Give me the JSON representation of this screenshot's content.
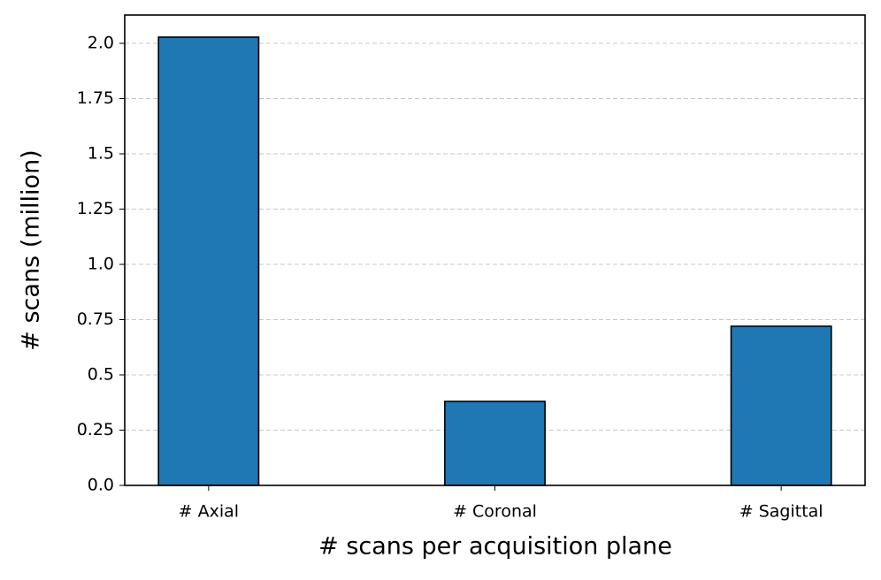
{
  "chart_data": {
    "type": "bar",
    "xlabel": "# scans per acquisition plane",
    "ylabel": "# scans (million)",
    "categories": [
      "# Axial",
      "# Coronal",
      "# Sagittal"
    ],
    "values": [
      2.028,
      0.38,
      0.72
    ],
    "color": "#1f77b4",
    "ylim": [
      0,
      2.128
    ],
    "yticks": [
      {
        "value": 0,
        "label": "0.0"
      },
      0.25,
      0.5,
      0.75,
      {
        "value": 1,
        "label": "1.0"
      },
      1.25,
      1.5,
      1.75,
      {
        "value": 2,
        "label": "2.0"
      }
    ],
    "grid": true
  }
}
